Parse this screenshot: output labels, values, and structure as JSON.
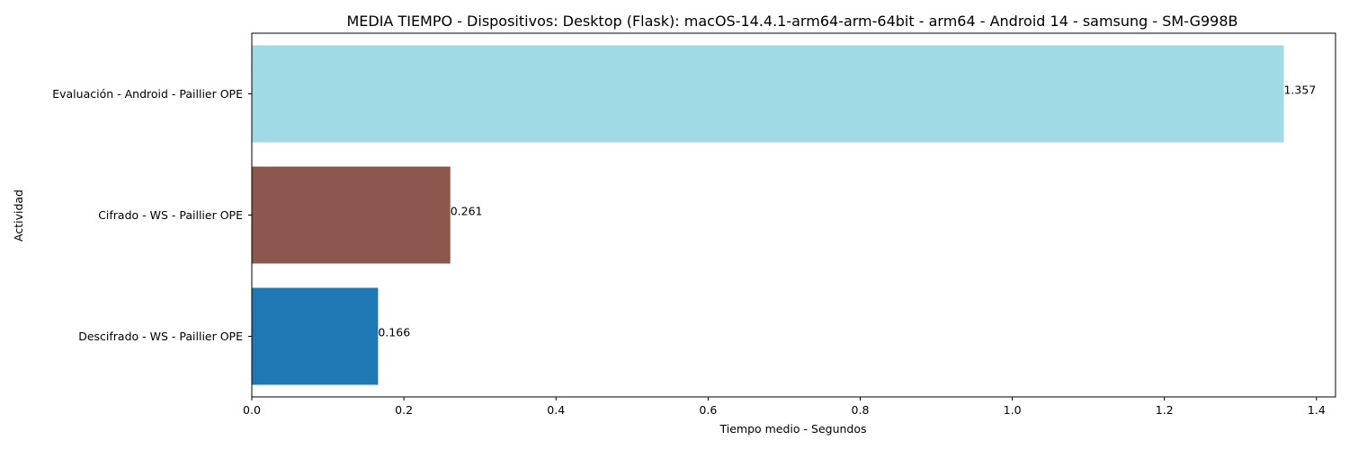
{
  "chart_data": {
    "type": "bar",
    "orientation": "horizontal",
    "title": "MEDIA TIEMPO - Dispositivos: Desktop (Flask): macOS-14.4.1-arm64-arm-64bit - arm64 - Android 14 - samsung - SM-G998B",
    "xlabel": "Tiempo medio - Segundos",
    "ylabel": "Actividad",
    "xlim": [
      0,
      1.425
    ],
    "x_ticks": [
      "0.0",
      "0.2",
      "0.4",
      "0.6",
      "0.8",
      "1.0",
      "1.2",
      "1.4"
    ],
    "grid": false,
    "legend": "none",
    "categories": [
      "Evaluación - Android - Paillier OPE",
      "Cifrado - WS - Paillier OPE",
      "Descifrado - WS - Paillier OPE"
    ],
    "values": [
      1.357,
      0.261,
      0.166
    ],
    "data_labels": [
      "1.357",
      "0.261",
      "0.166"
    ],
    "colors": [
      "#9fdae5",
      "#8c574c",
      "#1f77b4"
    ]
  }
}
